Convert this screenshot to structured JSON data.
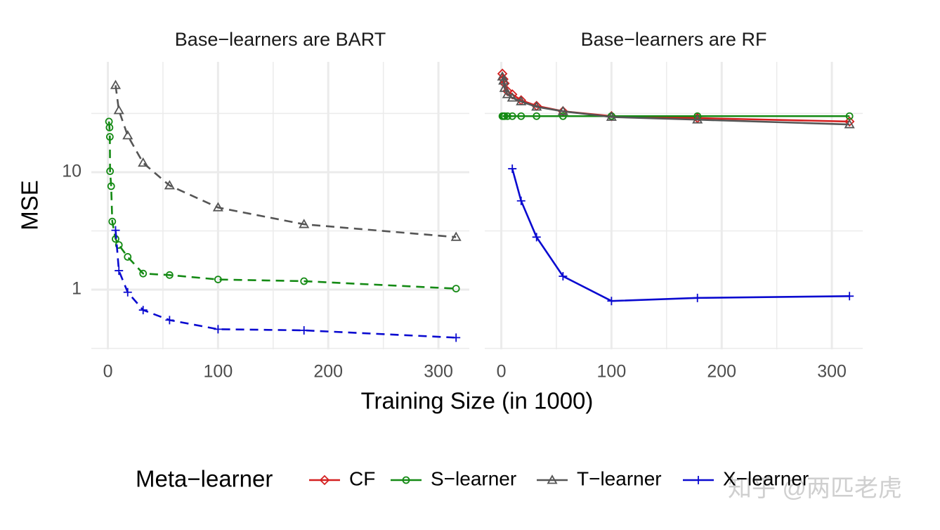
{
  "chart_data": [
    {
      "type": "line",
      "title": "Base−learners are BART",
      "dashed": true,
      "log_y": true,
      "xlim": [
        -15,
        328
      ],
      "xticks": [
        0,
        100,
        200,
        300
      ],
      "xminor": [
        50,
        150,
        250
      ],
      "ylim": [
        0.31,
        87
      ],
      "yticks": [
        1,
        10
      ],
      "yminor": [
        0.3162,
        3.162,
        31.62
      ],
      "series": [
        {
          "name": "S−learner",
          "color": "#148a14",
          "marker": "circle",
          "x": [
            1,
            1.5,
            1.8,
            2,
            3,
            4,
            7,
            10,
            18,
            32,
            56,
            100,
            178,
            316
          ],
          "values": [
            27,
            24,
            20,
            10.2,
            7.6,
            3.8,
            2.7,
            2.4,
            1.9,
            1.37,
            1.33,
            1.22,
            1.18,
            1.02
          ]
        },
        {
          "name": "T−learner",
          "color": "#555555",
          "marker": "triangle",
          "x": [
            7,
            10,
            18,
            32,
            56,
            100,
            178,
            316
          ],
          "values": [
            55,
            33.6,
            20.5,
            12,
            7.7,
            5.0,
            3.6,
            2.8
          ]
        },
        {
          "name": "X−learner",
          "color": "#0a0ad0",
          "marker": "plus",
          "x": [
            7,
            10,
            18,
            32,
            56,
            100,
            178,
            316
          ],
          "values": [
            3.2,
            1.45,
            0.95,
            0.67,
            0.55,
            0.46,
            0.45,
            0.39
          ]
        }
      ]
    },
    {
      "type": "line",
      "title": "Base−learners are RF",
      "dashed": false,
      "log_y": true,
      "xlim": [
        -15,
        328
      ],
      "xticks": [
        0,
        100,
        200,
        300
      ],
      "xminor": [
        50,
        150,
        250
      ],
      "ylim": [
        0.31,
        87
      ],
      "yminor": [
        0.3162,
        3.162,
        31.62
      ],
      "series": [
        {
          "name": "CF",
          "color": "#d42020",
          "marker": "diamond",
          "x": [
            1,
            2,
            3,
            5.6,
            10,
            18,
            32,
            56,
            100,
            178,
            316
          ],
          "values": [
            69,
            62,
            57,
            49,
            46,
            41,
            36.7,
            33,
            30,
            28.9,
            27
          ]
        },
        {
          "name": "S−learner",
          "color": "#148a14",
          "marker": "circle",
          "x": [
            1,
            2,
            3,
            5.6,
            10,
            18,
            32,
            56,
            100,
            178,
            316
          ],
          "values": [
            30,
            30,
            30,
            30,
            30,
            30,
            30,
            30,
            30,
            30,
            30
          ]
        },
        {
          "name": "T−learner",
          "color": "#555555",
          "marker": "triangle",
          "x": [
            1,
            2,
            3,
            5.6,
            10,
            18,
            32,
            56,
            100,
            178,
            316
          ],
          "values": [
            65,
            60,
            52,
            46,
            43,
            40,
            36,
            33,
            29.5,
            28,
            25.5
          ]
        },
        {
          "name": "X−learner",
          "color": "#0a0ad0",
          "marker": "plus",
          "x": [
            10,
            18,
            32,
            56,
            100,
            178,
            316
          ],
          "values": [
            10.7,
            5.7,
            2.8,
            1.3,
            0.8,
            0.85,
            0.88
          ]
        }
      ]
    }
  ],
  "x_label": "Training Size (in 1000)",
  "y_label": "MSE",
  "legend_title": "Meta−learner",
  "watermark": "知乎 @两匹老虎"
}
